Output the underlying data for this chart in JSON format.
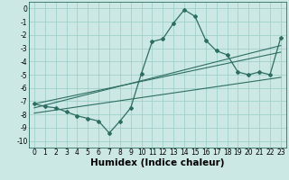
{
  "bg_color": "#cce8e4",
  "grid_color": "#99ccc6",
  "line_color": "#2d6e62",
  "xlabel": "Humidex (Indice chaleur)",
  "xlim": [
    -0.5,
    23.5
  ],
  "ylim": [
    -10.5,
    0.5
  ],
  "yticks": [
    0,
    -1,
    -2,
    -3,
    -4,
    -5,
    -6,
    -7,
    -8,
    -9,
    -10
  ],
  "xticks": [
    0,
    1,
    2,
    3,
    4,
    5,
    6,
    7,
    8,
    9,
    10,
    11,
    12,
    13,
    14,
    15,
    16,
    17,
    18,
    19,
    20,
    21,
    22,
    23
  ],
  "xtick_labels": [
    "0",
    "1",
    "2",
    "3",
    "4",
    "5",
    "6",
    "7",
    "8",
    "9",
    "10",
    "11",
    "12",
    "13",
    "14",
    "15",
    "16",
    "17",
    "18",
    "19",
    "20",
    "21",
    "22",
    "23"
  ],
  "curve1_x": [
    0,
    1,
    2,
    3,
    4,
    5,
    6,
    7,
    8,
    9,
    10,
    11,
    12,
    13,
    14,
    15,
    16,
    17,
    18,
    19,
    20,
    21,
    22,
    23
  ],
  "curve1_y": [
    -7.2,
    -7.4,
    -7.5,
    -7.8,
    -8.1,
    -8.3,
    -8.5,
    -9.4,
    -8.5,
    -7.5,
    -4.9,
    -2.5,
    -2.3,
    -1.1,
    -0.1,
    -0.6,
    -2.4,
    -3.2,
    -3.5,
    -4.8,
    -5.0,
    -4.8,
    -5.0,
    -2.2
  ],
  "line1_x": [
    0,
    23
  ],
  "line1_y": [
    -7.2,
    -3.3
  ],
  "line2_x": [
    0,
    23
  ],
  "line2_y": [
    -7.5,
    -2.8
  ],
  "line3_x": [
    0,
    23
  ],
  "line3_y": [
    -7.9,
    -5.2
  ],
  "fontsize_tick": 5.5,
  "fontsize_label": 7.5,
  "marker_size": 2.0,
  "lw_main": 0.9,
  "lw_line": 0.8
}
